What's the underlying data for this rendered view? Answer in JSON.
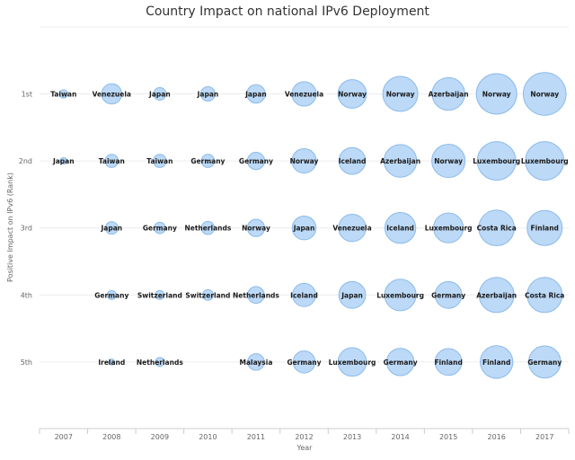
{
  "chart_data": {
    "type": "bubble",
    "title": "Country Impact on national IPv6 Deployment",
    "xlabel": "Year",
    "ylabel": "Positive Impact on IPv6 (Rank)",
    "categories": [
      "2007",
      "2008",
      "2009",
      "2010",
      "2011",
      "2012",
      "2013",
      "2014",
      "2015",
      "2016",
      "2017"
    ],
    "ranks": [
      "1st",
      "2nd",
      "3rd",
      "4th",
      "5th"
    ],
    "grid": true,
    "legend": "none",
    "colors": {
      "fill": "#bcd9f7",
      "stroke": "#8bbbe9"
    },
    "points": [
      {
        "year": "2007",
        "rank": 1,
        "country": "Taiwan",
        "size": 0.5
      },
      {
        "year": "2007",
        "rank": 2,
        "country": "Japan",
        "size": 0.2
      },
      {
        "year": "2008",
        "rank": 1,
        "country": "Venezuela",
        "size": 2.5
      },
      {
        "year": "2008",
        "rank": 2,
        "country": "Taiwan",
        "size": 1.3
      },
      {
        "year": "2008",
        "rank": 3,
        "country": "Japan",
        "size": 1.2
      },
      {
        "year": "2008",
        "rank": 4,
        "country": "Germany",
        "size": 0.6
      },
      {
        "year": "2008",
        "rank": 5,
        "country": "Ireland",
        "size": 0.1
      },
      {
        "year": "2009",
        "rank": 1,
        "country": "Japan",
        "size": 1.2
      },
      {
        "year": "2009",
        "rank": 2,
        "country": "Taiwan",
        "size": 1.3
      },
      {
        "year": "2009",
        "rank": 3,
        "country": "Germany",
        "size": 1.0
      },
      {
        "year": "2009",
        "rank": 4,
        "country": "Switzerland",
        "size": 0.6
      },
      {
        "year": "2009",
        "rank": 5,
        "country": "Netherlands",
        "size": 0.6
      },
      {
        "year": "2010",
        "rank": 1,
        "country": "Japan",
        "size": 1.5
      },
      {
        "year": "2010",
        "rank": 2,
        "country": "Germany",
        "size": 1.3
      },
      {
        "year": "2010",
        "rank": 3,
        "country": "Netherlands",
        "size": 1.3
      },
      {
        "year": "2010",
        "rank": 4,
        "country": "Switzerland",
        "size": 0.9
      },
      {
        "year": "2011",
        "rank": 1,
        "country": "Japan",
        "size": 2.2
      },
      {
        "year": "2011",
        "rank": 2,
        "country": "Germany",
        "size": 2.0
      },
      {
        "year": "2011",
        "rank": 3,
        "country": "Norway",
        "size": 2.0
      },
      {
        "year": "2011",
        "rank": 4,
        "country": "Netherlands",
        "size": 1.9
      },
      {
        "year": "2011",
        "rank": 5,
        "country": "Malaysia",
        "size": 1.9
      },
      {
        "year": "2012",
        "rank": 1,
        "country": "Venezuela",
        "size": 3.2
      },
      {
        "year": "2012",
        "rank": 2,
        "country": "Norway",
        "size": 3.2
      },
      {
        "year": "2012",
        "rank": 3,
        "country": "Japan",
        "size": 3.1
      },
      {
        "year": "2012",
        "rank": 4,
        "country": "Iceland",
        "size": 3.0
      },
      {
        "year": "2012",
        "rank": 5,
        "country": "Germany",
        "size": 2.8
      },
      {
        "year": "2013",
        "rank": 1,
        "country": "Norway",
        "size": 3.9
      },
      {
        "year": "2013",
        "rank": 2,
        "country": "Iceland",
        "size": 3.6
      },
      {
        "year": "2013",
        "rank": 3,
        "country": "Venezuela",
        "size": 3.7
      },
      {
        "year": "2013",
        "rank": 4,
        "country": "Japan",
        "size": 3.6
      },
      {
        "year": "2013",
        "rank": 5,
        "country": "Luxembourg",
        "size": 3.9
      },
      {
        "year": "2014",
        "rank": 1,
        "country": "Norway",
        "size": 5.0
      },
      {
        "year": "2014",
        "rank": 2,
        "country": "Azerbaijan",
        "size": 4.6
      },
      {
        "year": "2014",
        "rank": 3,
        "country": "Iceland",
        "size": 4.3
      },
      {
        "year": "2014",
        "rank": 4,
        "country": "Luxembourg",
        "size": 4.4
      },
      {
        "year": "2014",
        "rank": 5,
        "country": "Germany",
        "size": 3.7
      },
      {
        "year": "2015",
        "rank": 1,
        "country": "Azerbaijan",
        "size": 4.6
      },
      {
        "year": "2015",
        "rank": 2,
        "country": "Norway",
        "size": 4.7
      },
      {
        "year": "2015",
        "rank": 3,
        "country": "Luxembourg",
        "size": 4.1
      },
      {
        "year": "2015",
        "rank": 4,
        "country": "Germany",
        "size": 3.6
      },
      {
        "year": "2015",
        "rank": 5,
        "country": "Finland",
        "size": 3.6
      },
      {
        "year": "2016",
        "rank": 1,
        "country": "Norway",
        "size": 5.9
      },
      {
        "year": "2016",
        "rank": 2,
        "country": "Luxembourg",
        "size": 5.6
      },
      {
        "year": "2016",
        "rank": 3,
        "country": "Costa Rica",
        "size": 5.1
      },
      {
        "year": "2016",
        "rank": 4,
        "country": "Azerbaijan",
        "size": 5.0
      },
      {
        "year": "2016",
        "rank": 5,
        "country": "Finland",
        "size": 4.6
      },
      {
        "year": "2017",
        "rank": 1,
        "country": "Norway",
        "size": 6.3
      },
      {
        "year": "2017",
        "rank": 2,
        "country": "Luxembourg",
        "size": 5.6
      },
      {
        "year": "2017",
        "rank": 3,
        "country": "Finland",
        "size": 5.0
      },
      {
        "year": "2017",
        "rank": 4,
        "country": "Costa Rica",
        "size": 5.0
      },
      {
        "year": "2017",
        "rank": 5,
        "country": "Germany",
        "size": 4.5
      }
    ]
  }
}
